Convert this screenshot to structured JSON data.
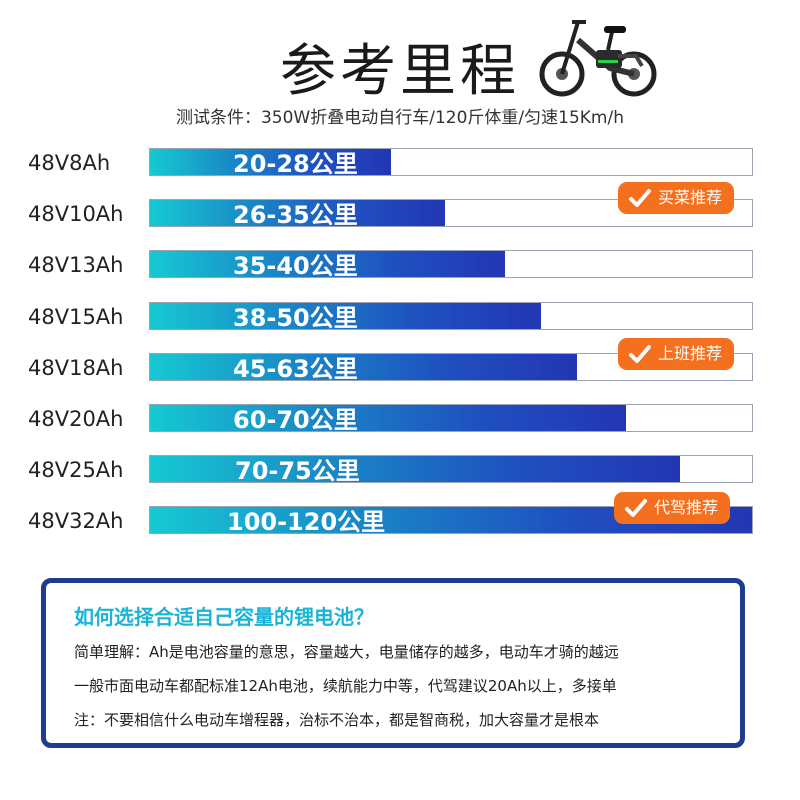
{
  "header": {
    "title": "参考里程",
    "subtitle": "测试条件：350W折叠电动自行车/120斤体重/匀速15Km/h",
    "bike_icon": "folding-ebike-icon"
  },
  "chart_data": {
    "type": "bar",
    "orientation": "horizontal",
    "categories": [
      "48V8Ah",
      "48V10Ah",
      "48V13Ah",
      "48V15Ah",
      "48V18Ah",
      "48V20Ah",
      "48V25Ah",
      "48V32Ah"
    ],
    "fill_fraction": [
      0.4,
      0.49,
      0.59,
      0.65,
      0.71,
      0.79,
      0.88,
      1.0
    ],
    "value_labels": [
      "20-28公里",
      "26-35公里",
      "35-40公里",
      "38-50公里",
      "45-63公里",
      "60-70公里",
      "70-75公里",
      "100-120公里"
    ],
    "badges": [
      {
        "category_index": 1,
        "text": "买菜推荐",
        "color": "#f5701e"
      },
      {
        "category_index": 4,
        "text": "上班推荐",
        "color": "#f5701e"
      },
      {
        "category_index": 7,
        "text": "代驾推荐",
        "color": "#f5701e"
      }
    ],
    "colors": {
      "gradient_start": "#16c9d3",
      "gradient_end": "#2336b4",
      "track_border": "#9aa3b0"
    }
  },
  "info": {
    "title": "如何选择合适自己容量的锂电池？",
    "lines": [
      "简单理解：Ah是电池容量的意思，容量越大，电量储存的越多，电动车才骑的越远",
      "一般市面电动车都配标准12Ah电池，续航能力中等，代驾建议20Ah以上，多接单",
      "注：不要相信什么电动车增程器，治标不治本，都是智商税，加大容量才是根本"
    ],
    "border_color": "#1d3e8f",
    "title_color": "#1ab4d8"
  }
}
